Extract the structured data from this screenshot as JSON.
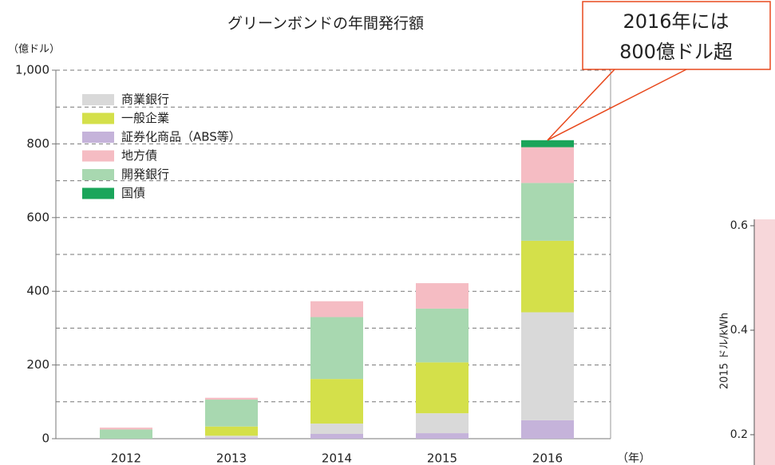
{
  "chart_data": [
    {
      "type": "stacked_bar",
      "title": "グリーンボンドの年間発行額",
      "y_unit": "（億ドル）",
      "x_unit": "（年）",
      "categories": [
        "2012",
        "2013",
        "2014",
        "2015",
        "2016"
      ],
      "series": [
        {
          "name": "証券化商品（ABS等）",
          "color": "#c5b3da",
          "values": [
            0,
            3,
            13,
            15,
            50
          ]
        },
        {
          "name": "商業銀行",
          "color": "#d9d9d9",
          "values": [
            0,
            5,
            28,
            54,
            293
          ]
        },
        {
          "name": "一般企業",
          "color": "#d4e04a",
          "values": [
            0,
            25,
            121,
            138,
            194
          ]
        },
        {
          "name": "開発銀行",
          "color": "#a8d8b0",
          "values": [
            25,
            73,
            168,
            146,
            157
          ]
        },
        {
          "name": "地方債",
          "color": "#f5bcc3",
          "values": [
            5,
            5,
            43,
            69,
            97
          ]
        },
        {
          "name": "国債",
          "color": "#1aa55a",
          "values": [
            0,
            0,
            0,
            0,
            19
          ]
        }
      ],
      "legend_order": [
        1,
        2,
        0,
        4,
        3,
        5
      ],
      "ylim": [
        0,
        1000
      ],
      "yticks": [
        0,
        200,
        400,
        600,
        800,
        {
          "value": 1000,
          "label": "1,000"
        }
      ],
      "minor_yticks": [
        100,
        300,
        500,
        700,
        900
      ],
      "grid": true,
      "annotation": {
        "lines": [
          "2016年には",
          "800億ドル超"
        ],
        "color": "#e8491d"
      }
    },
    {
      "type": "scatter_frame",
      "ylabel": "2015 ドル/kWh",
      "ylim": [
        0.2,
        0.6
      ],
      "yticks": [
        0.2,
        0.4,
        0.6
      ],
      "background": "#f7d7da"
    }
  ]
}
